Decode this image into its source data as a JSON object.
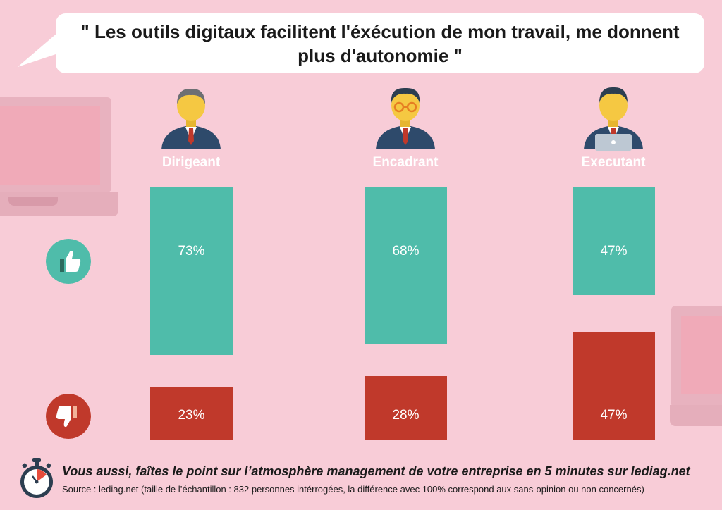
{
  "title": "\" Les outils digitaux facilitent l'éxécution de mon travail, me donnent plus d'autonomie \"",
  "chart_data": {
    "type": "bar",
    "categories": [
      "Dirigeant",
      "Encadrant",
      "Executant"
    ],
    "series": [
      {
        "key": "positive",
        "values": [
          73,
          68,
          47
        ],
        "labels": [
          "73%",
          "68%",
          "47%"
        ],
        "color": "#4fbcaa"
      },
      {
        "key": "negative",
        "values": [
          23,
          28,
          47
        ],
        "labels": [
          "23%",
          "28%",
          "47%"
        ],
        "color": "#c0392b"
      }
    ],
    "ylim": [
      0,
      100
    ],
    "icons": {
      "positive": "thumbs-up-icon",
      "negative": "thumbs-down-icon"
    },
    "icon_colors": {
      "positive": "#4fbcaa",
      "negative": "#c0392b"
    }
  },
  "personas": [
    {
      "label": "Dirigeant",
      "icon": "executive-avatar-icon"
    },
    {
      "label": "Encadrant",
      "icon": "manager-with-glasses-avatar-icon"
    },
    {
      "label": "Executant",
      "icon": "employee-with-laptop-avatar-icon"
    }
  ],
  "footer": {
    "cta": "Vous aussi, faîtes le point sur l’atmosphère management de votre entreprise en 5 minutes sur lediag.net",
    "source": "Source : lediag.net (taille de l’échantillon : 832 personnes intérrogées, la différence avec 100% correspond aux sans-opinion ou non concernés)",
    "icon": "stopwatch-icon"
  },
  "colors": {
    "background": "#f8ccd7",
    "positive": "#4fbcaa",
    "negative": "#c0392b"
  }
}
